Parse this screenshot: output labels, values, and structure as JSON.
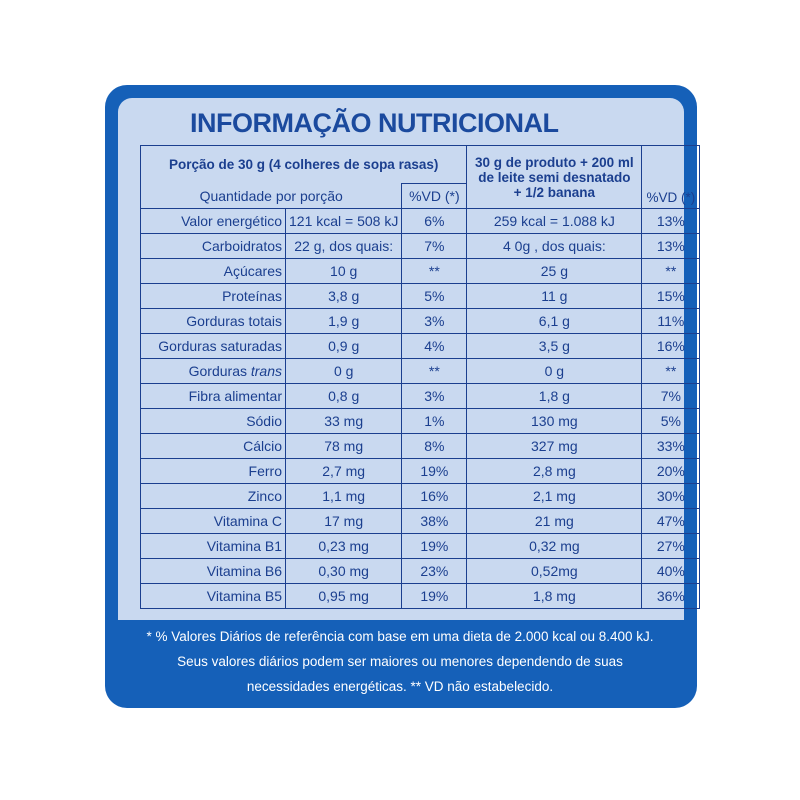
{
  "title": "INFORMAÇÃO NUTRICIONAL",
  "table": {
    "header": {
      "portion": "Porção de 30 g (4 colheres de sopa rasas)",
      "quantity": "Quantidade por porção",
      "vd1": "%VD (*)",
      "preparation": [
        "30 g de produto + 200 ml",
        "de leite semi desnatado",
        "+ 1/2 banana"
      ],
      "vd2": "%VD (*)"
    },
    "rows": [
      [
        "Valor energético",
        "121 kcal = 508 kJ",
        "6%",
        "259 kcal = 1.088 kJ",
        "13%"
      ],
      [
        "Carboidratos",
        "22 g, dos quais:",
        "7%",
        "4 0g , dos quais:",
        "13%"
      ],
      [
        "Açúcares",
        "10 g",
        "**",
        "25 g",
        "**"
      ],
      [
        "Proteínas",
        "3,8 g",
        "5%",
        "11 g",
        "15%"
      ],
      [
        "Gorduras totais",
        "1,9 g",
        "3%",
        "6,1 g",
        "11%"
      ],
      [
        "Gorduras saturadas",
        "0,9 g",
        "4%",
        "3,5 g",
        "16%"
      ],
      [
        {
          "text": "Gorduras",
          "italic": "trans"
        },
        "0 g",
        "**",
        "0 g",
        "**"
      ],
      [
        "Fibra alimentar",
        "0,8 g",
        "3%",
        "1,8 g",
        "7%"
      ],
      [
        "Sódio",
        "33 mg",
        "1%",
        "130 mg",
        "5%"
      ],
      [
        "Cálcio",
        "78 mg",
        "8%",
        "327 mg",
        "33%"
      ],
      [
        "Ferro",
        "2,7 mg",
        "19%",
        "2,8 mg",
        "20%"
      ],
      [
        "Zinco",
        "1,1 mg",
        "16%",
        "2,1 mg",
        "30%"
      ],
      [
        "Vitamina C",
        "17 mg",
        "38%",
        "21 mg",
        "47%"
      ],
      [
        "Vitamina B1",
        "0,23 mg",
        "19%",
        "0,32 mg",
        "27%"
      ],
      [
        "Vitamina B6",
        "0,30 mg",
        "23%",
        "0,52mg",
        "40%"
      ],
      [
        "Vitamina B5",
        "0,95 mg",
        "19%",
        "1,8 mg",
        "36%"
      ]
    ]
  },
  "footer": [
    "* % Valores Diários de referência com base em uma dieta de 2.000 kcal ou 8.400 kJ.",
    "Seus valores diários podem ser maiores ou menores dependendo de suas",
    "necessidades energéticas. ** VD não estabelecido."
  ]
}
